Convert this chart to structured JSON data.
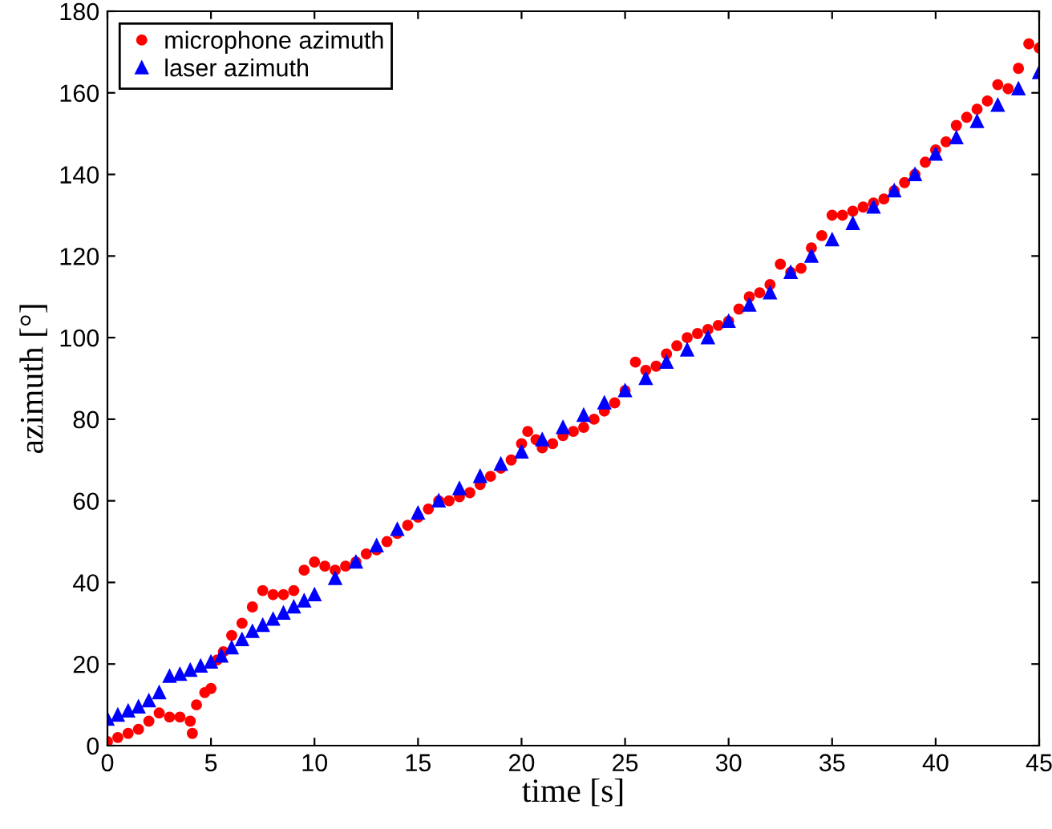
{
  "chart_data": {
    "type": "scatter",
    "xlabel": "time [s]",
    "ylabel": "azimuth [°]",
    "xlim": [
      0,
      45
    ],
    "ylim": [
      0,
      180
    ],
    "xticks": [
      0,
      5,
      10,
      15,
      20,
      25,
      30,
      35,
      40,
      45
    ],
    "yticks": [
      0,
      20,
      40,
      60,
      80,
      100,
      120,
      140,
      160,
      180
    ],
    "grid": false,
    "legend": "top left",
    "series": [
      {
        "name": "microphone azimuth",
        "color": "#ff0000",
        "marker": "circle",
        "x": [
          0,
          0.5,
          1,
          1.5,
          2,
          2.5,
          3,
          3.5,
          4,
          4.1,
          4.3,
          4.7,
          5,
          5.3,
          5.6,
          6,
          6.5,
          7,
          7.5,
          8,
          8.5,
          9,
          9.5,
          10,
          10.5,
          11,
          11.5,
          12,
          12.5,
          13,
          13.5,
          14,
          14.5,
          15,
          15.5,
          16,
          16.5,
          17,
          17.5,
          18,
          18.5,
          19,
          19.5,
          20,
          20.3,
          20.7,
          21,
          21.5,
          22,
          22.5,
          23,
          23.5,
          24,
          24.5,
          25,
          25.5,
          26,
          26.5,
          27,
          27.5,
          28,
          28.5,
          29,
          29.5,
          30,
          30.5,
          31,
          31.5,
          32,
          32.5,
          33,
          33.5,
          34,
          34.5,
          35,
          35.5,
          36,
          36.5,
          37,
          37.5,
          38,
          38.5,
          39,
          39.5,
          40,
          40.5,
          41,
          41.5,
          42,
          42.5,
          43,
          43.5,
          44,
          44.5,
          45
        ],
        "values": [
          1,
          2,
          3,
          4,
          6,
          8,
          7,
          7,
          6,
          3,
          10,
          13,
          14,
          21,
          23,
          27,
          30,
          34,
          38,
          37,
          37,
          38,
          43,
          45,
          44,
          43,
          44,
          45,
          47,
          48,
          50,
          52,
          54,
          56,
          58,
          60,
          60,
          61,
          62,
          64,
          66,
          68,
          70,
          74,
          77,
          75,
          73,
          74,
          76,
          77,
          78,
          80,
          82,
          84,
          87,
          94,
          92,
          93,
          96,
          98,
          100,
          101,
          102,
          103,
          104,
          107,
          110,
          111,
          113,
          118,
          116,
          117,
          122,
          125,
          130,
          130,
          131,
          132,
          133,
          134,
          136,
          138,
          140,
          143,
          146,
          148,
          152,
          154,
          156,
          158,
          162,
          161,
          166,
          172,
          171
        ]
      },
      {
        "name": "laser azimuth",
        "color": "#0000ff",
        "marker": "triangle",
        "x": [
          0,
          0.5,
          1,
          1.5,
          2,
          2.5,
          3,
          3.5,
          4,
          4.5,
          5,
          5.5,
          6,
          6.5,
          7,
          7.5,
          8,
          8.5,
          9,
          9.5,
          10,
          11,
          12,
          13,
          14,
          15,
          16,
          17,
          18,
          19,
          20,
          21,
          22,
          23,
          24,
          25,
          26,
          27,
          28,
          29,
          30,
          31,
          32,
          33,
          34,
          35,
          36,
          37,
          38,
          39,
          40,
          41,
          42,
          43,
          44,
          45
        ],
        "values": [
          6.5,
          7.5,
          8.5,
          9.5,
          11,
          13,
          17,
          17.5,
          18.5,
          19.5,
          20.5,
          22,
          24,
          26,
          28,
          29.5,
          31,
          32.5,
          34,
          35.5,
          37,
          41,
          45,
          49,
          53,
          57,
          60,
          63,
          66,
          69,
          72,
          75,
          78,
          81,
          84,
          87,
          90,
          94,
          97,
          100,
          104,
          108,
          111,
          116,
          120,
          124,
          128,
          132,
          136,
          140,
          145,
          149,
          153,
          157,
          161,
          165
        ]
      }
    ]
  }
}
